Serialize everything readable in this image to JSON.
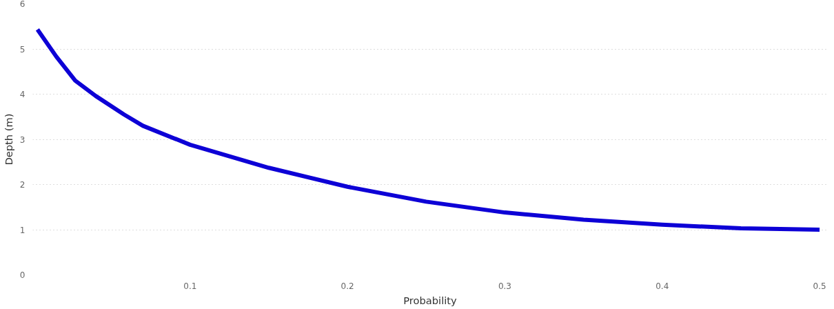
{
  "chart_data": {
    "type": "line",
    "xlabel": "Probability",
    "ylabel": "Depth (m)",
    "xlim": [
      0,
      0.505
    ],
    "ylim": [
      0,
      6
    ],
    "xticks": [
      0.1,
      0.2,
      0.3,
      0.4,
      0.5
    ],
    "yticks": [
      0,
      1,
      2,
      3,
      4,
      5,
      6
    ],
    "grid": "y",
    "line_style": "solid",
    "series": [
      {
        "color": "#0d00d6",
        "x": [
          0.003,
          0.015,
          0.027,
          0.04,
          0.058,
          0.07,
          0.1,
          0.15,
          0.2,
          0.25,
          0.3,
          0.35,
          0.4,
          0.45,
          0.5
        ],
        "values": [
          5.43,
          4.83,
          4.3,
          3.96,
          3.55,
          3.3,
          2.88,
          2.37,
          1.95,
          1.62,
          1.38,
          1.22,
          1.11,
          1.03,
          1.0
        ]
      }
    ]
  }
}
